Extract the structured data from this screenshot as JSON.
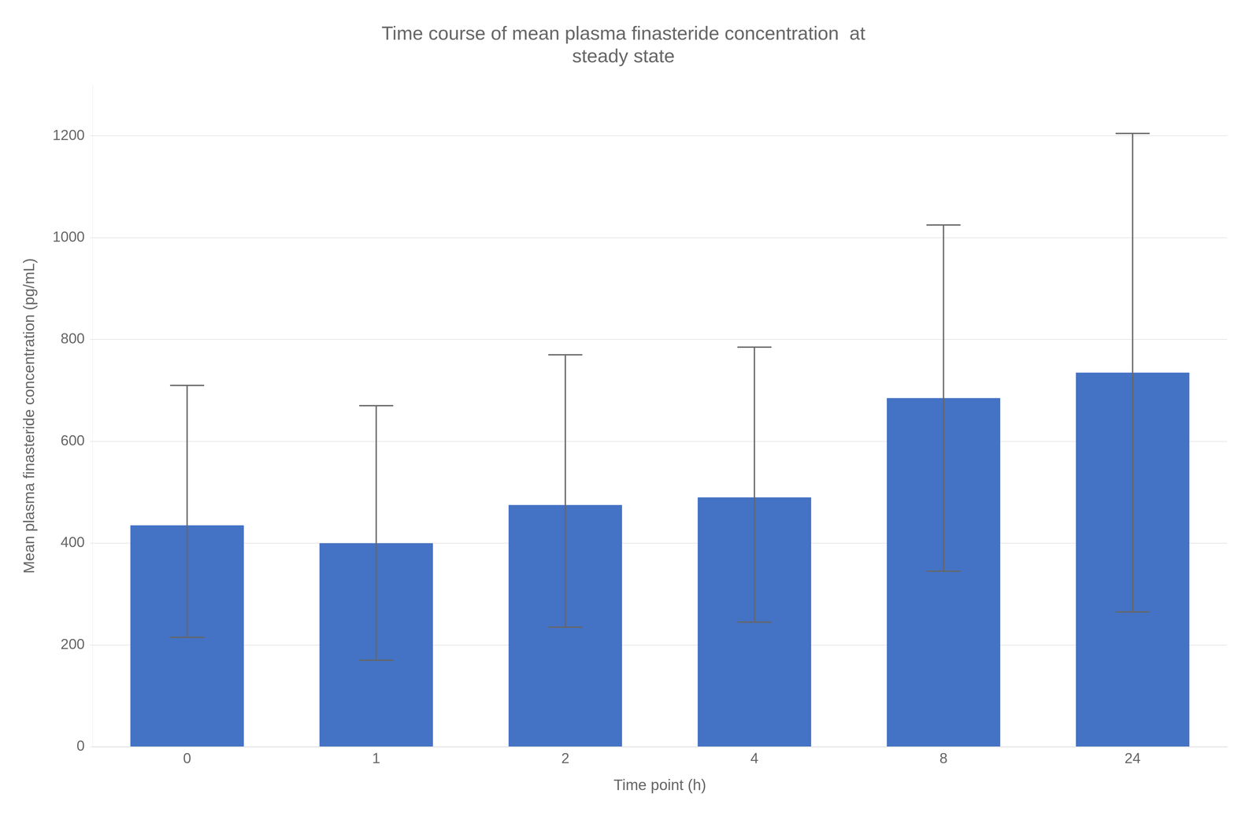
{
  "chart_data": {
    "type": "bar",
    "title": "Time course of mean plasma finasteride concentration  at\nsteady state",
    "xlabel": "Time point (h)",
    "ylabel": "Mean plasma finasteride concentration (pg/mL)",
    "categories": [
      "0",
      "1",
      "2",
      "4",
      "8",
      "24"
    ],
    "values": [
      435,
      400,
      475,
      490,
      685,
      735
    ],
    "errors_upper": [
      275,
      270,
      295,
      295,
      340,
      470
    ],
    "errors_lower": [
      220,
      230,
      240,
      245,
      340,
      470
    ],
    "color": "#4472C4",
    "ylim": [
      0,
      1300
    ],
    "yticks": [
      0,
      200,
      400,
      600,
      800,
      1000,
      1200
    ],
    "grid": true
  }
}
